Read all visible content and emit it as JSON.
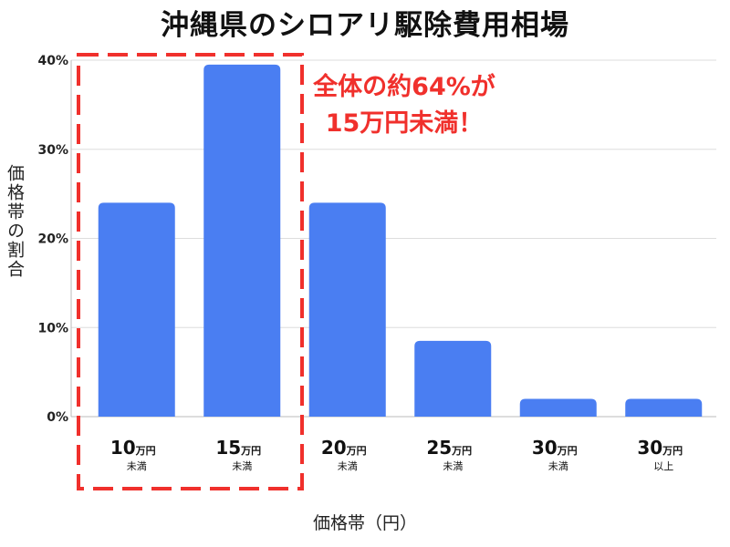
{
  "chart_data": {
    "type": "bar",
    "title": "沖縄県のシロアリ駆除費用相場",
    "xlabel": "価格帯（円）",
    "ylabel": "価格帯の割合",
    "categories": [
      {
        "main": "10",
        "unit": "万円",
        "sub": "未満"
      },
      {
        "main": "15",
        "unit": "万円",
        "sub": "未満"
      },
      {
        "main": "20",
        "unit": "万円",
        "sub": "未満"
      },
      {
        "main": "25",
        "unit": "万円",
        "sub": "未満"
      },
      {
        "main": "30",
        "unit": "万円",
        "sub": "未満"
      },
      {
        "main": "30",
        "unit": "万円",
        "sub": "以上"
      }
    ],
    "values": [
      24,
      39.5,
      24,
      8.5,
      2,
      2
    ],
    "ylim": [
      0,
      40
    ],
    "yticks": [
      0,
      10,
      20,
      30,
      40
    ],
    "ytick_labels": [
      "0%",
      "10%",
      "20%",
      "30%",
      "40%"
    ],
    "grid": true,
    "bar_color": "#4a7ef2",
    "highlight": {
      "categories": [
        0,
        1
      ],
      "color": "#f0302c",
      "text": [
        "全体の約64%が",
        "15万円未満！"
      ]
    }
  }
}
